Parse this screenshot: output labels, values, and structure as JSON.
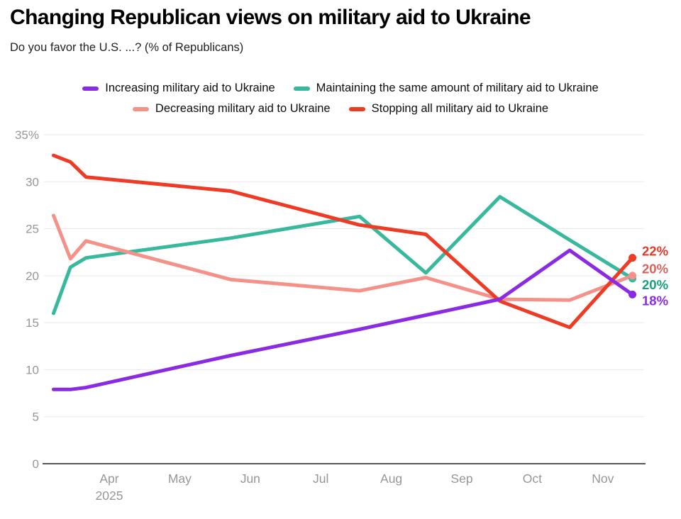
{
  "header": {
    "title": "Changing Republican views on military aid to Ukraine",
    "subtitle": "Do you favor the U.S. ...? (% of Republicans)"
  },
  "legend": {
    "rows": [
      [
        0,
        1
      ],
      [
        2,
        3
      ]
    ]
  },
  "chart_data": {
    "type": "line",
    "title": "Changing Republican views on military aid to Ukraine",
    "subtitle": "Do you favor the U.S. ...? (% of Republicans)",
    "ylabel": "% of Republicans",
    "ylim": [
      0,
      35
    ],
    "grid": "horizontal",
    "legend_position": "top",
    "x_dates_2025": [
      "Mar 7",
      "Mar 15",
      "Mar 22",
      "May 23",
      "Jul 17",
      "Aug 16",
      "Sep 17",
      "Oct 17",
      "Nov 13"
    ],
    "x_months_since_mar1": [
      0.21,
      0.45,
      0.67,
      2.72,
      4.55,
      5.49,
      6.54,
      7.53,
      8.42
    ],
    "x_axis": {
      "tick_labels": [
        "Apr",
        "May",
        "Jun",
        "Jul",
        "Aug",
        "Sep",
        "Oct",
        "Nov"
      ],
      "tick_positions_months": [
        1,
        2,
        3,
        4,
        5,
        6,
        7,
        8
      ],
      "year_label": "2025",
      "year_under_tick": "Apr"
    },
    "y_axis": {
      "ticks": [
        0,
        5,
        10,
        15,
        20,
        25,
        30,
        35
      ],
      "tick_labels": [
        "0",
        "5",
        "10",
        "15",
        "20",
        "25",
        "30",
        "35%"
      ]
    },
    "series": [
      {
        "key": "increasing",
        "name": "Increasing military aid to Ukraine",
        "color": "#8a2be2",
        "label_color": "#8a2be2",
        "end_label": "18%",
        "z": 4,
        "values": [
          7.9,
          7.9,
          8.1,
          11.5,
          14.3,
          15.8,
          17.5,
          22.7,
          18
        ]
      },
      {
        "key": "maintaining",
        "name": "Maintaining the same amount of military aid to Ukraine",
        "color": "#38b89c",
        "label_color": "#16a07e",
        "end_label": "20%",
        "z": 1,
        "values": [
          16,
          20.9,
          21.9,
          24,
          26.3,
          20.3,
          28.4,
          23.8,
          19.7
        ]
      },
      {
        "key": "decreasing",
        "name": "Decreasing military aid to Ukraine",
        "color": "#f4928a",
        "label_color": "#d4655c",
        "end_label": "20%",
        "z": 2,
        "values": [
          26.4,
          21.8,
          23.7,
          19.6,
          18.4,
          19.8,
          17.5,
          17.4,
          20
        ]
      },
      {
        "key": "stopping",
        "name": "Stopping all military aid to Ukraine",
        "color": "#ee3b26",
        "label_color": "#e23a28",
        "end_label": "22%",
        "z": 3,
        "values": [
          32.8,
          32.1,
          30.5,
          29,
          25.4,
          24.4,
          17.3,
          14.5,
          21.9
        ]
      }
    ],
    "style": {
      "axis_text": "#94979a",
      "gridline": "#e9e9e9",
      "baseline": "#55585a",
      "background": "#ffffff",
      "legend_text": "#0d0d0d"
    }
  }
}
